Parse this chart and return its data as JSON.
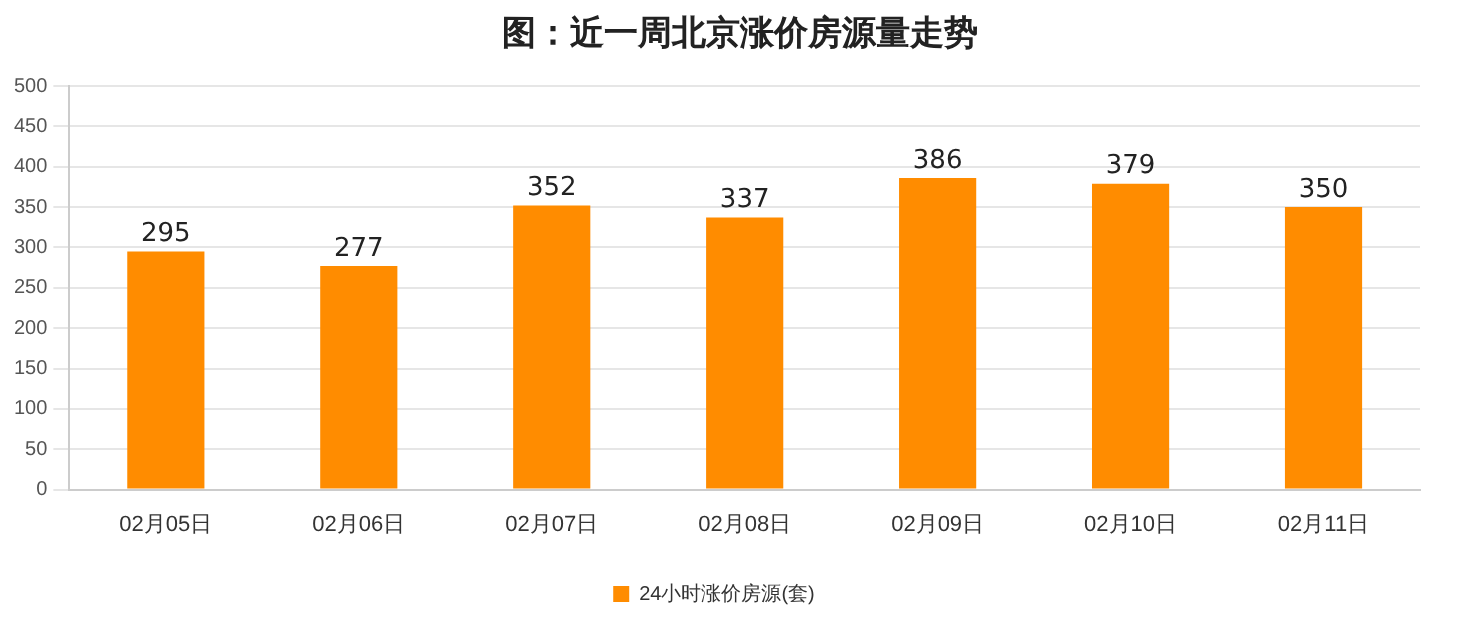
{
  "chart_data": {
    "type": "bar",
    "title": "图：近一周北京涨价房源量走势",
    "categories": [
      "02月05日",
      "02月06日",
      "02月07日",
      "02月08日",
      "02月09日",
      "02月10日",
      "02月11日"
    ],
    "series": [
      {
        "name": "24小时涨价房源(套)",
        "color": "#ff8c00",
        "values": [
          295,
          277,
          352,
          337,
          386,
          379,
          350
        ]
      }
    ],
    "ylim": [
      0,
      500
    ],
    "yticks": [
      0,
      50,
      100,
      150,
      200,
      250,
      300,
      350,
      400,
      450,
      500
    ],
    "grid": "y",
    "legend": "bottom",
    "data_labels": true
  }
}
